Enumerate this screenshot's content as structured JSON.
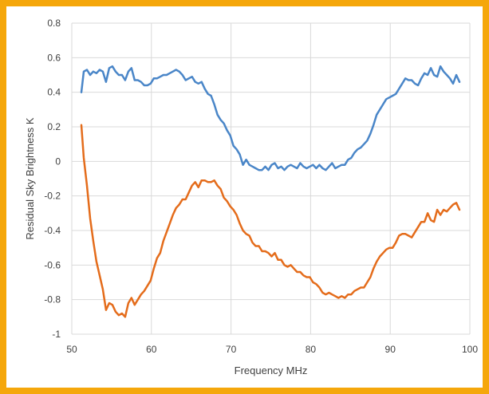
{
  "chart_data": {
    "type": "line",
    "title": "",
    "xlabel": "Frequency MHz",
    "ylabel": "Residual Sky Brightness  K",
    "xlim": [
      50,
      100
    ],
    "ylim": [
      -1,
      0.8
    ],
    "xticks": [
      50,
      60,
      70,
      80,
      90,
      100
    ],
    "yticks": [
      -1,
      -0.8,
      -0.6,
      -0.4,
      -0.2,
      0,
      0.2,
      0.4,
      0.6,
      0.8
    ],
    "xtick_labels": [
      "50",
      "60",
      "70",
      "80",
      "90",
      "100"
    ],
    "ytick_labels": [
      "-1",
      "-0.8",
      "-0.6",
      "-0.4",
      "-0.2",
      "0",
      "0.2",
      "0.4",
      "0.6",
      "0.8"
    ],
    "grid": true,
    "legend": "none",
    "series": [
      {
        "color": "#4a86c8",
        "x": [
          51.2,
          51.5,
          51.9,
          52.3,
          52.7,
          53.1,
          53.5,
          53.9,
          54.3,
          54.7,
          55.1,
          55.5,
          55.9,
          56.3,
          56.7,
          57.1,
          57.5,
          57.9,
          58.3,
          58.7,
          59.1,
          59.5,
          59.9,
          60.3,
          60.7,
          61.1,
          61.5,
          61.9,
          62.3,
          62.7,
          63.1,
          63.5,
          63.9,
          64.3,
          64.7,
          65.1,
          65.5,
          65.9,
          66.3,
          66.7,
          67.1,
          67.5,
          67.9,
          68.3,
          68.7,
          69.1,
          69.5,
          69.9,
          70.3,
          70.7,
          71.1,
          71.5,
          71.9,
          72.3,
          72.7,
          73.1,
          73.5,
          73.9,
          74.3,
          74.7,
          75.1,
          75.5,
          75.9,
          76.3,
          76.7,
          77.1,
          77.5,
          77.9,
          78.3,
          78.7,
          79.1,
          79.5,
          79.9,
          80.3,
          80.7,
          81.1,
          81.5,
          81.9,
          82.3,
          82.7,
          83.1,
          83.5,
          83.9,
          84.3,
          84.7,
          85.1,
          85.5,
          85.9,
          86.3,
          86.7,
          87.1,
          87.5,
          87.9,
          88.3,
          88.7,
          89.1,
          89.5,
          89.9,
          90.3,
          90.7,
          91.1,
          91.5,
          91.9,
          92.3,
          92.7,
          93.1,
          93.5,
          93.9,
          94.3,
          94.7,
          95.1,
          95.5,
          95.9,
          96.3,
          96.7,
          97.1,
          97.5,
          97.9,
          98.3,
          98.7
        ],
        "y": [
          0.4,
          0.52,
          0.53,
          0.5,
          0.52,
          0.51,
          0.53,
          0.52,
          0.46,
          0.54,
          0.55,
          0.52,
          0.5,
          0.5,
          0.47,
          0.52,
          0.54,
          0.47,
          0.47,
          0.46,
          0.44,
          0.44,
          0.45,
          0.48,
          0.48,
          0.49,
          0.5,
          0.5,
          0.51,
          0.52,
          0.53,
          0.52,
          0.5,
          0.47,
          0.48,
          0.49,
          0.46,
          0.45,
          0.46,
          0.42,
          0.39,
          0.38,
          0.33,
          0.27,
          0.24,
          0.22,
          0.18,
          0.15,
          0.09,
          0.07,
          0.04,
          -0.02,
          0.01,
          -0.02,
          -0.03,
          -0.04,
          -0.05,
          -0.05,
          -0.03,
          -0.05,
          -0.02,
          -0.01,
          -0.04,
          -0.03,
          -0.05,
          -0.03,
          -0.02,
          -0.03,
          -0.04,
          -0.01,
          -0.03,
          -0.04,
          -0.03,
          -0.02,
          -0.04,
          -0.02,
          -0.04,
          -0.05,
          -0.03,
          -0.01,
          -0.04,
          -0.03,
          -0.02,
          -0.02,
          0.01,
          0.02,
          0.05,
          0.07,
          0.08,
          0.1,
          0.12,
          0.16,
          0.21,
          0.27,
          0.3,
          0.33,
          0.36,
          0.37,
          0.38,
          0.39,
          0.42,
          0.45,
          0.48,
          0.47,
          0.47,
          0.45,
          0.44,
          0.48,
          0.51,
          0.5,
          0.54,
          0.5,
          0.49,
          0.55,
          0.52,
          0.5,
          0.48,
          0.45,
          0.5,
          0.46
        ]
      },
      {
        "color": "#e46c1b",
        "x": [
          51.2,
          51.5,
          51.9,
          52.3,
          52.7,
          53.1,
          53.5,
          53.9,
          54.3,
          54.7,
          55.1,
          55.5,
          55.9,
          56.3,
          56.7,
          57.1,
          57.5,
          57.9,
          58.3,
          58.7,
          59.1,
          59.5,
          59.9,
          60.3,
          60.7,
          61.1,
          61.5,
          61.9,
          62.3,
          62.7,
          63.1,
          63.5,
          63.9,
          64.3,
          64.7,
          65.1,
          65.5,
          65.9,
          66.3,
          66.7,
          67.1,
          67.5,
          67.9,
          68.3,
          68.7,
          69.1,
          69.5,
          69.9,
          70.3,
          70.7,
          71.1,
          71.5,
          71.9,
          72.3,
          72.7,
          73.1,
          73.5,
          73.9,
          74.3,
          74.7,
          75.1,
          75.5,
          75.9,
          76.3,
          76.7,
          77.1,
          77.5,
          77.9,
          78.3,
          78.7,
          79.1,
          79.5,
          79.9,
          80.3,
          80.7,
          81.1,
          81.5,
          81.9,
          82.3,
          82.7,
          83.1,
          83.5,
          83.9,
          84.3,
          84.7,
          85.1,
          85.5,
          85.9,
          86.3,
          86.7,
          87.1,
          87.5,
          87.9,
          88.3,
          88.7,
          89.1,
          89.5,
          89.9,
          90.3,
          90.7,
          91.1,
          91.5,
          91.9,
          92.3,
          92.7,
          93.1,
          93.5,
          93.9,
          94.3,
          94.7,
          95.1,
          95.5,
          95.9,
          96.3,
          96.7,
          97.1,
          97.5,
          97.9,
          98.3,
          98.7
        ],
        "y": [
          0.21,
          0.02,
          -0.14,
          -0.33,
          -0.46,
          -0.58,
          -0.66,
          -0.74,
          -0.86,
          -0.82,
          -0.83,
          -0.87,
          -0.89,
          -0.88,
          -0.9,
          -0.82,
          -0.79,
          -0.83,
          -0.8,
          -0.77,
          -0.75,
          -0.72,
          -0.69,
          -0.62,
          -0.56,
          -0.53,
          -0.46,
          -0.41,
          -0.36,
          -0.31,
          -0.27,
          -0.25,
          -0.22,
          -0.22,
          -0.18,
          -0.14,
          -0.12,
          -0.15,
          -0.11,
          -0.11,
          -0.12,
          -0.12,
          -0.11,
          -0.14,
          -0.16,
          -0.21,
          -0.23,
          -0.26,
          -0.28,
          -0.31,
          -0.36,
          -0.4,
          -0.42,
          -0.43,
          -0.47,
          -0.49,
          -0.49,
          -0.52,
          -0.52,
          -0.53,
          -0.55,
          -0.53,
          -0.57,
          -0.57,
          -0.6,
          -0.61,
          -0.6,
          -0.62,
          -0.64,
          -0.64,
          -0.66,
          -0.67,
          -0.67,
          -0.7,
          -0.71,
          -0.73,
          -0.76,
          -0.77,
          -0.76,
          -0.77,
          -0.78,
          -0.79,
          -0.78,
          -0.79,
          -0.77,
          -0.77,
          -0.75,
          -0.74,
          -0.73,
          -0.73,
          -0.7,
          -0.67,
          -0.62,
          -0.58,
          -0.55,
          -0.53,
          -0.51,
          -0.5,
          -0.5,
          -0.47,
          -0.43,
          -0.42,
          -0.42,
          -0.43,
          -0.44,
          -0.41,
          -0.38,
          -0.35,
          -0.35,
          -0.3,
          -0.34,
          -0.35,
          -0.28,
          -0.31,
          -0.28,
          -0.29,
          -0.27,
          -0.25,
          -0.24,
          -0.28
        ]
      }
    ]
  }
}
